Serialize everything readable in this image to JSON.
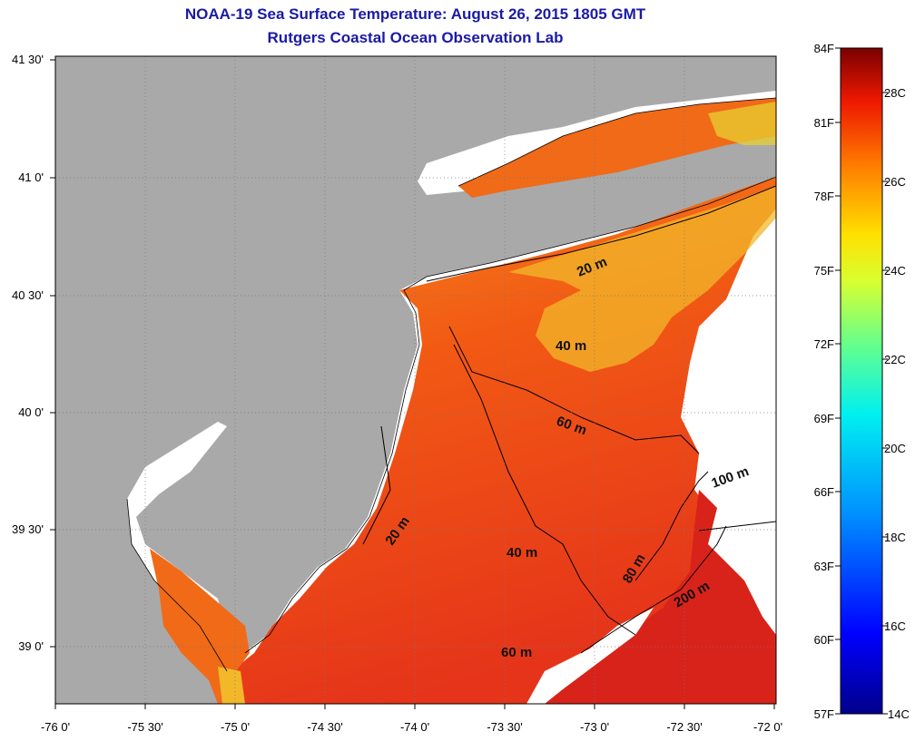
{
  "title": "NOAA-19 Sea Surface Temperature:  August 26, 2015 1805 GMT",
  "subtitle": "Rutgers Coastal Ocean Observation Lab",
  "map": {
    "x_ticks": [
      "-76 0'",
      "-75 30'",
      "-75 0'",
      "-74 30'",
      "-74 0'",
      "-73 30'",
      "-73 0'",
      "-72 30'",
      "-72 0'"
    ],
    "y_ticks": [
      "41 30'",
      "41 0'",
      "40 30'",
      "40 0'",
      "39 30'",
      "39 0'"
    ],
    "contours": [
      "20 m",
      "40 m",
      "60 m",
      "100 m",
      "20 m",
      "40 m",
      "80 m",
      "200 m",
      "60 m"
    ],
    "colors": {
      "land": "#a9a9a9",
      "sea_warm": "#f04a10",
      "sea_mid": "#f57a18",
      "sea_cool": "#f2b82a",
      "sea_deep": "#d8231a",
      "cloud": "#ffffff"
    }
  },
  "colorbar": {
    "f_labels": [
      "84F",
      "81F",
      "78F",
      "75F",
      "72F",
      "69F",
      "66F",
      "63F",
      "60F",
      "57F"
    ],
    "c_labels": [
      "28C",
      "26C",
      "24C",
      "22C",
      "20C",
      "18C",
      "16C",
      "14C"
    ]
  }
}
